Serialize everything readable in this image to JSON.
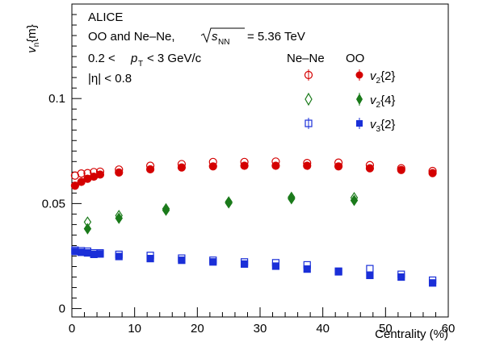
{
  "chart_data": {
    "type": "scatter",
    "xlabel": "Centrality (%)",
    "ylabel": "v_n{m}",
    "xlim": [
      0,
      60
    ],
    "ylim": [
      -0.004,
      0.145
    ],
    "xticks": [
      0,
      10,
      20,
      30,
      40,
      50,
      60
    ],
    "xtick_labels": [
      "0",
      "10",
      "20",
      "30",
      "40",
      "50",
      "60"
    ],
    "yticks": [
      0,
      0.05,
      0.1
    ],
    "ytick_labels": [
      "0",
      "0.05",
      "0.1"
    ],
    "grid": false,
    "annotations": {
      "experiment": "ALICE",
      "system_prefix": "OO and Ne–Ne,",
      "energy_value": "= 5.36 TeV",
      "pt_low": "0.2 <",
      "pt_high": "< 3 GeV/c",
      "eta_cut": "|η| < 0.8"
    },
    "legend": {
      "position": "top-right",
      "header_nene": "Ne–Ne",
      "header_oo": "OO"
    },
    "series": [
      {
        "name": "v2{2}",
        "system": "Ne–Ne",
        "marker": "circle-open",
        "color": "#d40000",
        "x": [
          0.5,
          1.5,
          2.5,
          3.5,
          4.5,
          7.5,
          12.5,
          17.5,
          22.5,
          27.5,
          32.5,
          37.5,
          42.5,
          47.5,
          52.5,
          57.5
        ],
        "y": [
          0.0633,
          0.0643,
          0.0645,
          0.065,
          0.0652,
          0.0662,
          0.068,
          0.0688,
          0.0698,
          0.0698,
          0.07,
          0.0693,
          0.0695,
          0.0683,
          0.0668,
          0.0655
        ]
      },
      {
        "name": "v2{2}",
        "system": "OO",
        "marker": "circle-filled",
        "color": "#d40000",
        "x": [
          0.5,
          1.5,
          2.5,
          3.5,
          4.5,
          7.5,
          12.5,
          17.5,
          22.5,
          27.5,
          32.5,
          37.5,
          42.5,
          47.5,
          52.5,
          57.5
        ],
        "y": [
          0.0585,
          0.0603,
          0.0618,
          0.0628,
          0.0638,
          0.0648,
          0.0663,
          0.0672,
          0.0677,
          0.068,
          0.068,
          0.068,
          0.0677,
          0.0668,
          0.066,
          0.0645
        ]
      },
      {
        "name": "v2{4}",
        "system": "Ne–Ne",
        "marker": "diamond-open",
        "color": "#1a7a1a",
        "x": [
          2.5,
          7.5,
          15.0,
          25.0,
          35.0,
          45.0
        ],
        "y": [
          0.0412,
          0.0443,
          0.0475,
          0.0508,
          0.053,
          0.0528
        ]
      },
      {
        "name": "v2{4}",
        "system": "OO",
        "marker": "diamond-filled",
        "color": "#1a7a1a",
        "x": [
          2.5,
          7.5,
          15.0,
          25.0,
          35.0,
          45.0
        ],
        "y": [
          0.038,
          0.043,
          0.0468,
          0.0503,
          0.0523,
          0.0515
        ]
      },
      {
        "name": "v3{2}",
        "system": "Ne–Ne",
        "marker": "square-open",
        "color": "#1a2fd8",
        "x": [
          0.5,
          1.5,
          2.5,
          3.5,
          4.5,
          7.5,
          12.5,
          17.5,
          22.5,
          27.5,
          32.5,
          37.5,
          42.5,
          47.5,
          52.5,
          57.5
        ],
        "y": [
          0.0278,
          0.0275,
          0.0273,
          0.0265,
          0.0265,
          0.0258,
          0.0253,
          0.024,
          0.023,
          0.0222,
          0.0218,
          0.0208,
          0.0178,
          0.019,
          0.0163,
          0.0135
        ]
      },
      {
        "name": "v3{2}",
        "system": "OO",
        "marker": "square-filled",
        "color": "#1a2fd8",
        "x": [
          0.5,
          1.5,
          2.5,
          3.5,
          4.5,
          7.5,
          12.5,
          17.5,
          22.5,
          27.5,
          32.5,
          37.5,
          42.5,
          47.5,
          52.5,
          57.5
        ],
        "y": [
          0.0272,
          0.0268,
          0.0265,
          0.0258,
          0.026,
          0.0248,
          0.0238,
          0.023,
          0.0222,
          0.0212,
          0.0202,
          0.0188,
          0.0175,
          0.0158,
          0.015,
          0.0122
        ]
      }
    ]
  }
}
